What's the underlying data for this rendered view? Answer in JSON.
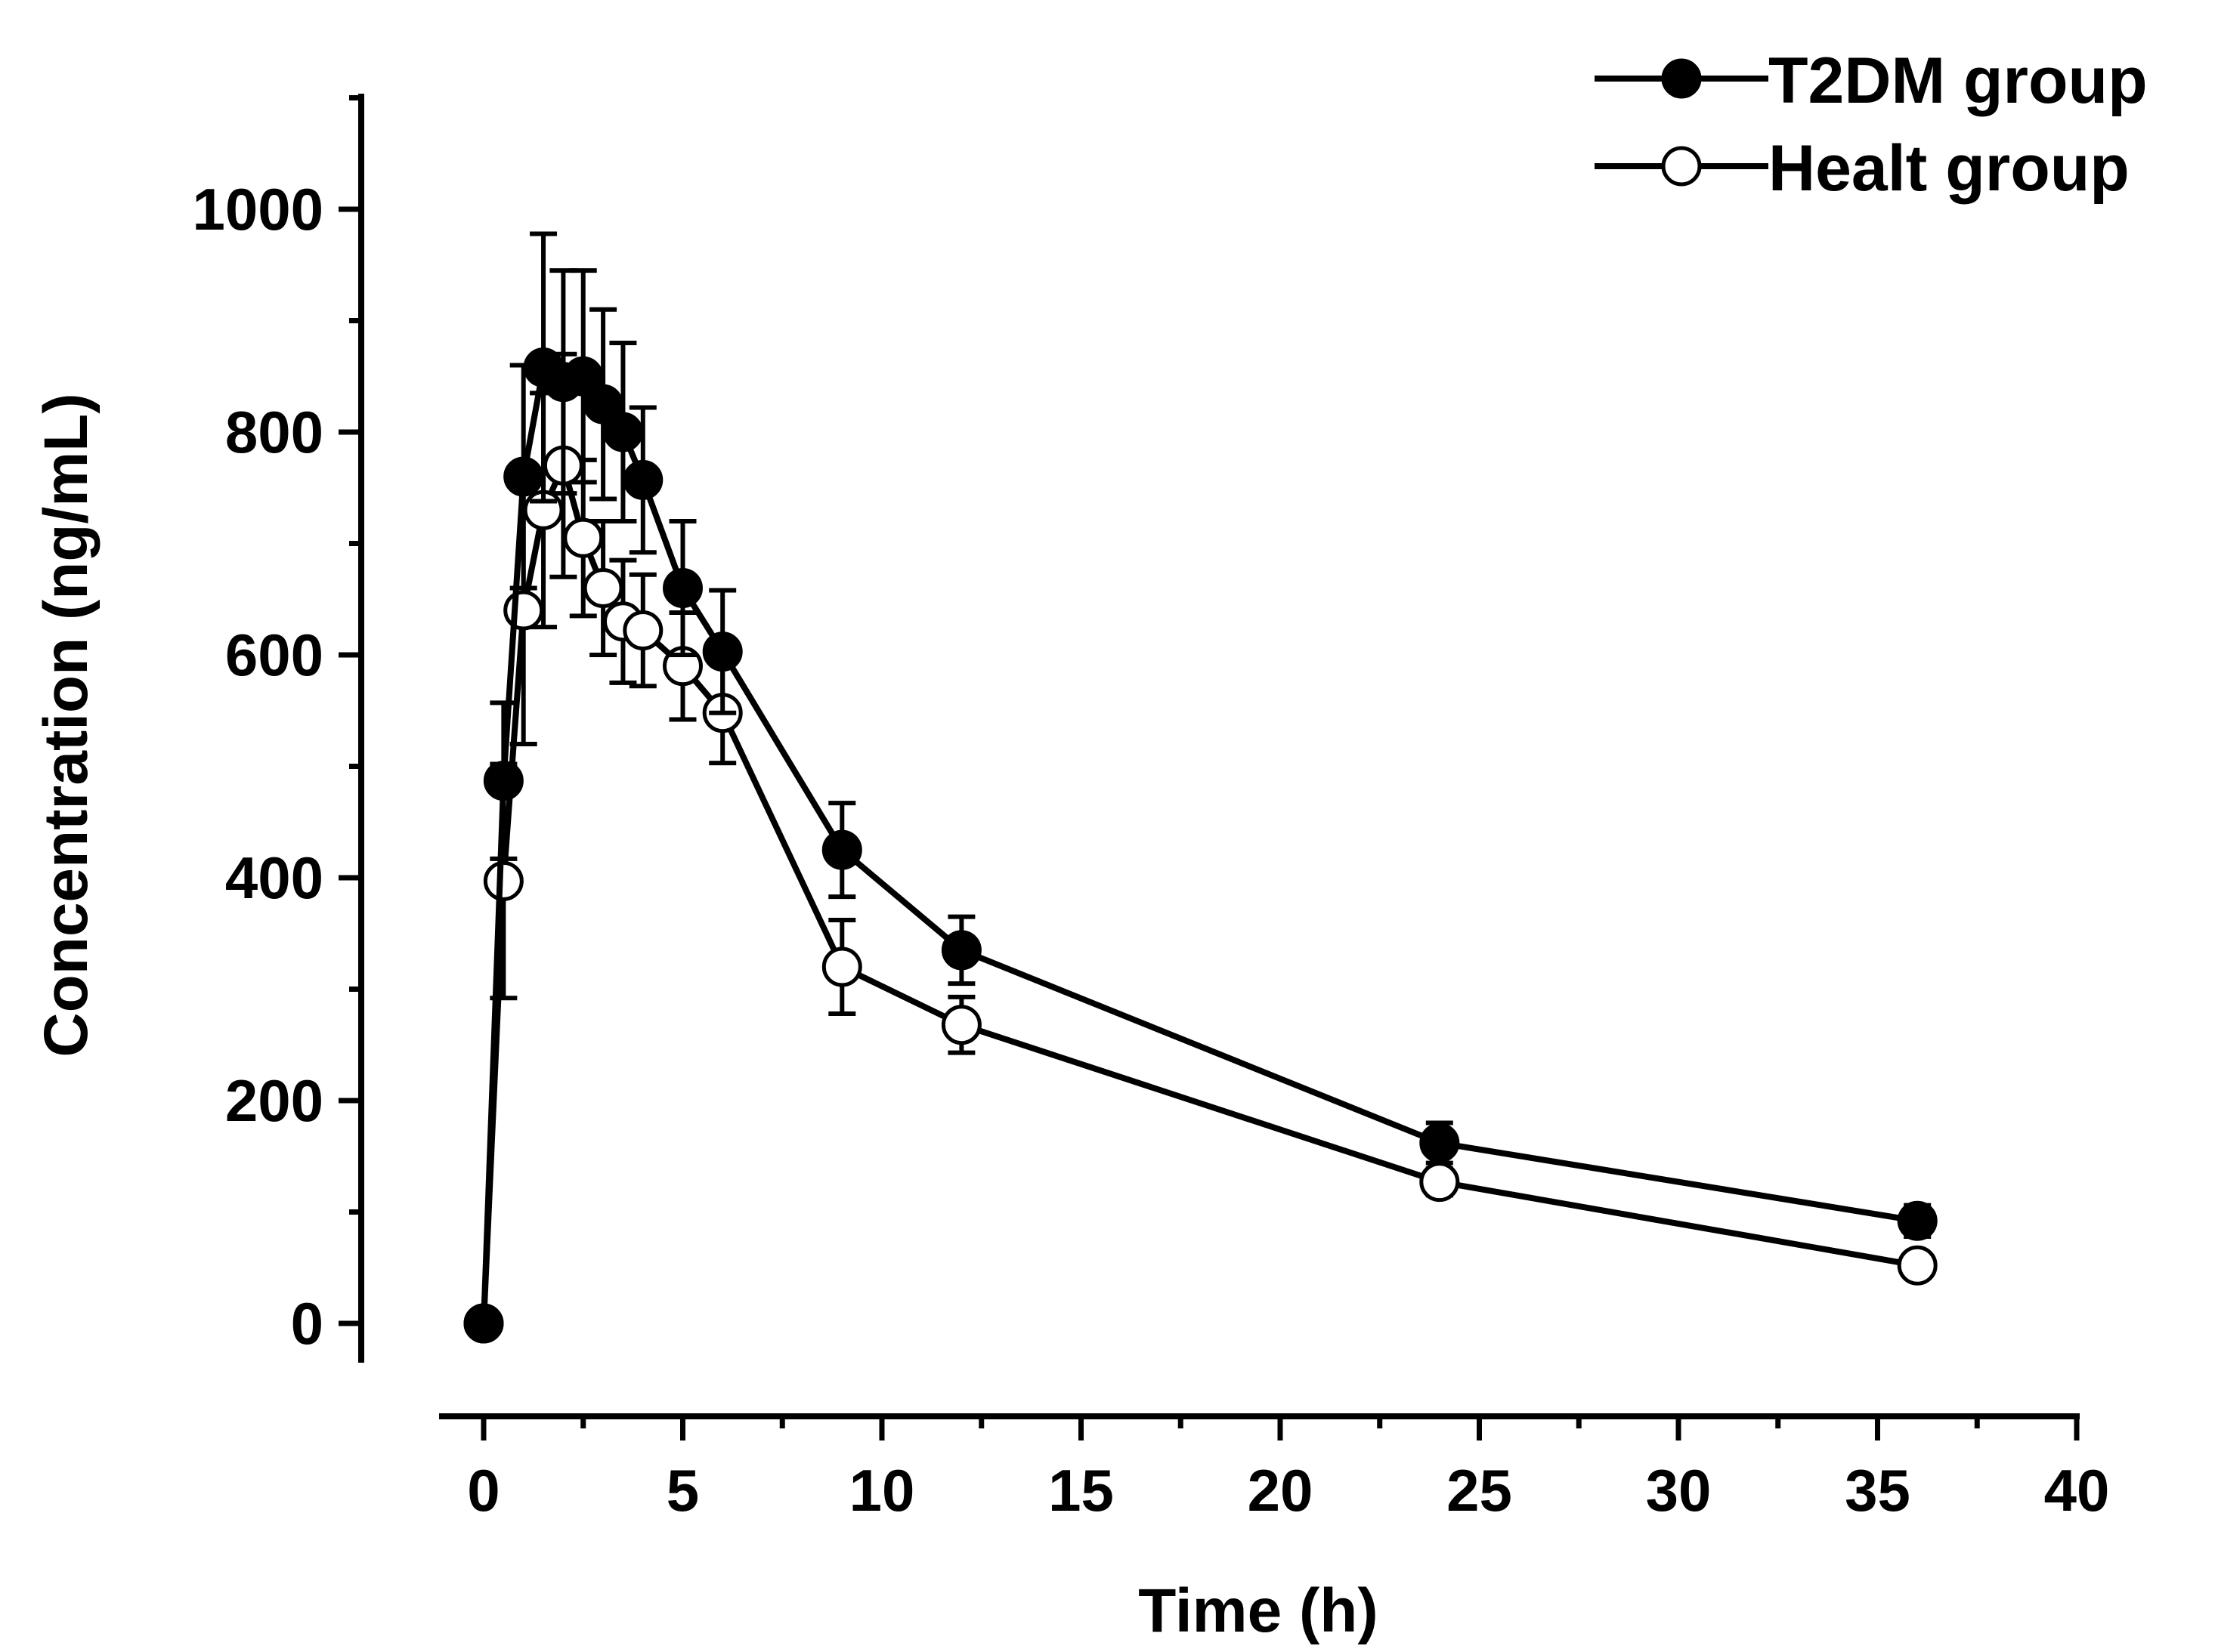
{
  "chart_data": {
    "type": "line",
    "title": "",
    "xlabel": "Time (h)",
    "ylabel": "Concentration (ng/mL)",
    "xlim": [
      0,
      40
    ],
    "ylim": [
      0,
      1100
    ],
    "xticks": [
      0,
      5,
      10,
      15,
      20,
      25,
      30,
      35,
      40
    ],
    "yticks": [
      0,
      200,
      400,
      600,
      800,
      1000
    ],
    "xtick_labels": [
      "0",
      "5",
      "10",
      "15",
      "20",
      "25",
      "30",
      "35",
      "40"
    ],
    "ytick_labels": [
      "0",
      "200",
      "400",
      "600",
      "800",
      "1000"
    ],
    "legend_position": "top-right",
    "grid": false,
    "series": [
      {
        "name": "T2DM group",
        "marker": "filled-circle",
        "color": "#000000",
        "x": [
          0,
          0.5,
          1,
          1.5,
          2,
          2.5,
          3,
          3.5,
          4,
          5,
          6,
          9,
          12,
          24,
          36
        ],
        "y": [
          0,
          487,
          760,
          858,
          845,
          850,
          825,
          800,
          757,
          660,
          603,
          425,
          335,
          162,
          92
        ],
        "error": [
          0,
          70,
          100,
          120,
          100,
          95,
          85,
          80,
          65,
          60,
          55,
          42,
          30,
          18,
          14
        ]
      },
      {
        "name": "Healt group",
        "marker": "open-circle",
        "color": "#000000",
        "x": [
          0,
          0.5,
          1,
          1.5,
          2,
          2.5,
          3,
          3.5,
          4,
          5,
          6,
          9,
          12,
          24,
          36
        ],
        "y": [
          0,
          397,
          640,
          730,
          770,
          705,
          660,
          630,
          622,
          590,
          548,
          320,
          268,
          127,
          52
        ],
        "error": [
          0,
          105,
          120,
          105,
          100,
          70,
          60,
          55,
          50,
          48,
          45,
          42,
          25,
          12,
          10
        ]
      }
    ]
  }
}
